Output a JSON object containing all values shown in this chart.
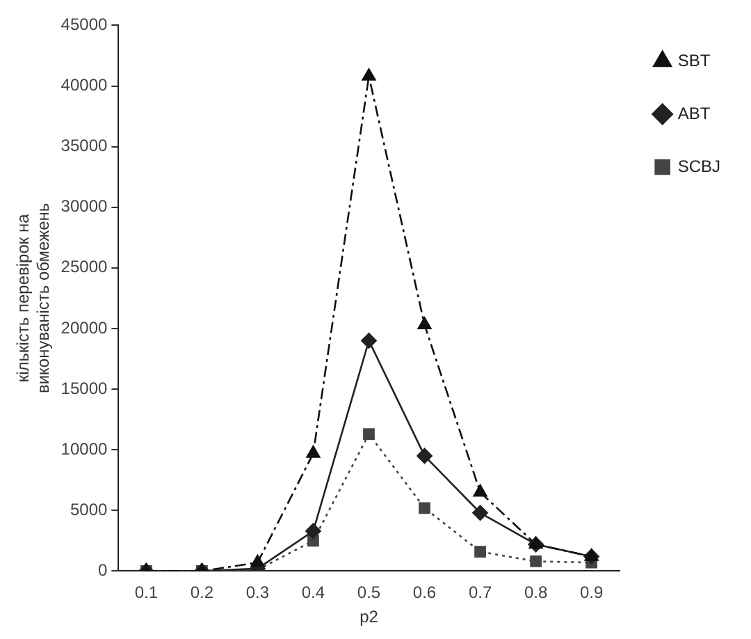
{
  "chart_data": {
    "type": "line",
    "xlabel": "p2",
    "ylabel": "кількість перевірок на виконуваність обмежень",
    "categories": [
      "0.1",
      "0.2",
      "0.3",
      "0.4",
      "0.5",
      "0.6",
      "0.7",
      "0.8",
      "0.9"
    ],
    "ylim": [
      0,
      45000
    ],
    "yticks": [
      0,
      5000,
      10000,
      15000,
      20000,
      25000,
      30000,
      35000,
      40000,
      45000
    ],
    "grid": false,
    "legend": "top right",
    "series": [
      {
        "name": "SBT",
        "color": "#111111",
        "marker": "triangle",
        "line_style": "dashed",
        "values": [
          0,
          0,
          700,
          9700,
          40800,
          20300,
          6500,
          2200,
          1200
        ]
      },
      {
        "name": "ABT",
        "color": "#222222",
        "marker": "diamond",
        "line_style": "solid",
        "values": [
          0,
          0,
          200,
          3300,
          19000,
          9500,
          4800,
          2200,
          1200
        ]
      },
      {
        "name": "SCBJ",
        "color": "#444444",
        "marker": "square",
        "line_style": "dotted",
        "values": [
          0,
          0,
          100,
          2500,
          11300,
          5200,
          1600,
          800,
          700
        ]
      }
    ]
  }
}
